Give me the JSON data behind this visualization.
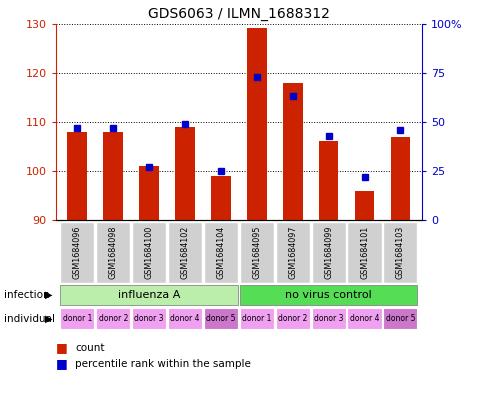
{
  "title": "GDS6063 / ILMN_1688312",
  "samples": [
    "GSM1684096",
    "GSM1684098",
    "GSM1684100",
    "GSM1684102",
    "GSM1684104",
    "GSM1684095",
    "GSM1684097",
    "GSM1684099",
    "GSM1684101",
    "GSM1684103"
  ],
  "counts": [
    108,
    108,
    101,
    109,
    99,
    129,
    118,
    106,
    96,
    107
  ],
  "percentiles": [
    47,
    47,
    27,
    49,
    25,
    73,
    63,
    43,
    22,
    46
  ],
  "ylim_left": [
    90,
    130
  ],
  "ylim_right": [
    0,
    100
  ],
  "yticks_left": [
    90,
    100,
    110,
    120,
    130
  ],
  "yticks_right": [
    0,
    25,
    50,
    75,
    100
  ],
  "ytick_labels_right": [
    "0",
    "25",
    "50",
    "75",
    "100%"
  ],
  "bar_color": "#cc2200",
  "dot_color": "#0000cc",
  "infection_groups": [
    {
      "label": "influenza A",
      "start": 0,
      "end": 4,
      "color": "#bbeeaa"
    },
    {
      "label": "no virus control",
      "start": 5,
      "end": 9,
      "color": "#55dd55"
    }
  ],
  "individual_labels": [
    "donor 1",
    "donor 2",
    "donor 3",
    "donor 4",
    "donor 5",
    "donor 1",
    "donor 2",
    "donor 3",
    "donor 4",
    "donor 5"
  ],
  "individual_colors": [
    "#f0a0f0",
    "#f0a0f0",
    "#f0a0f0",
    "#f0a0f0",
    "#cc77cc",
    "#f0a0f0",
    "#f0a0f0",
    "#f0a0f0",
    "#f0a0f0",
    "#cc77cc"
  ],
  "sample_bg": "#d0d0d0",
  "legend_count_color": "#cc2200",
  "legend_pct_color": "#0000cc"
}
